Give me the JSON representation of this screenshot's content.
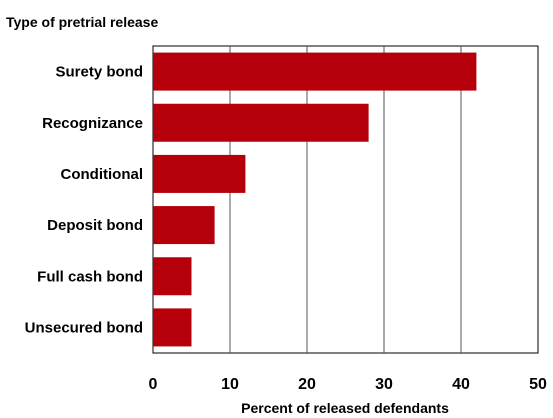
{
  "chart_data": {
    "type": "bar",
    "orientation": "horizontal",
    "title": "Type of pretrial release",
    "xlabel": "Percent of released defendants",
    "ylabel": "",
    "categories": [
      "Surety bond",
      "Recognizance",
      "Conditional",
      "Deposit bond",
      "Full cash bond",
      "Unsecured bond"
    ],
    "values": [
      42,
      28,
      12,
      8,
      5,
      5
    ],
    "xlim": [
      0,
      50
    ],
    "xticks": [
      0,
      10,
      20,
      30,
      40,
      50
    ],
    "grid": "vertical",
    "legend": "none",
    "bar_color": "#b5000b"
  }
}
